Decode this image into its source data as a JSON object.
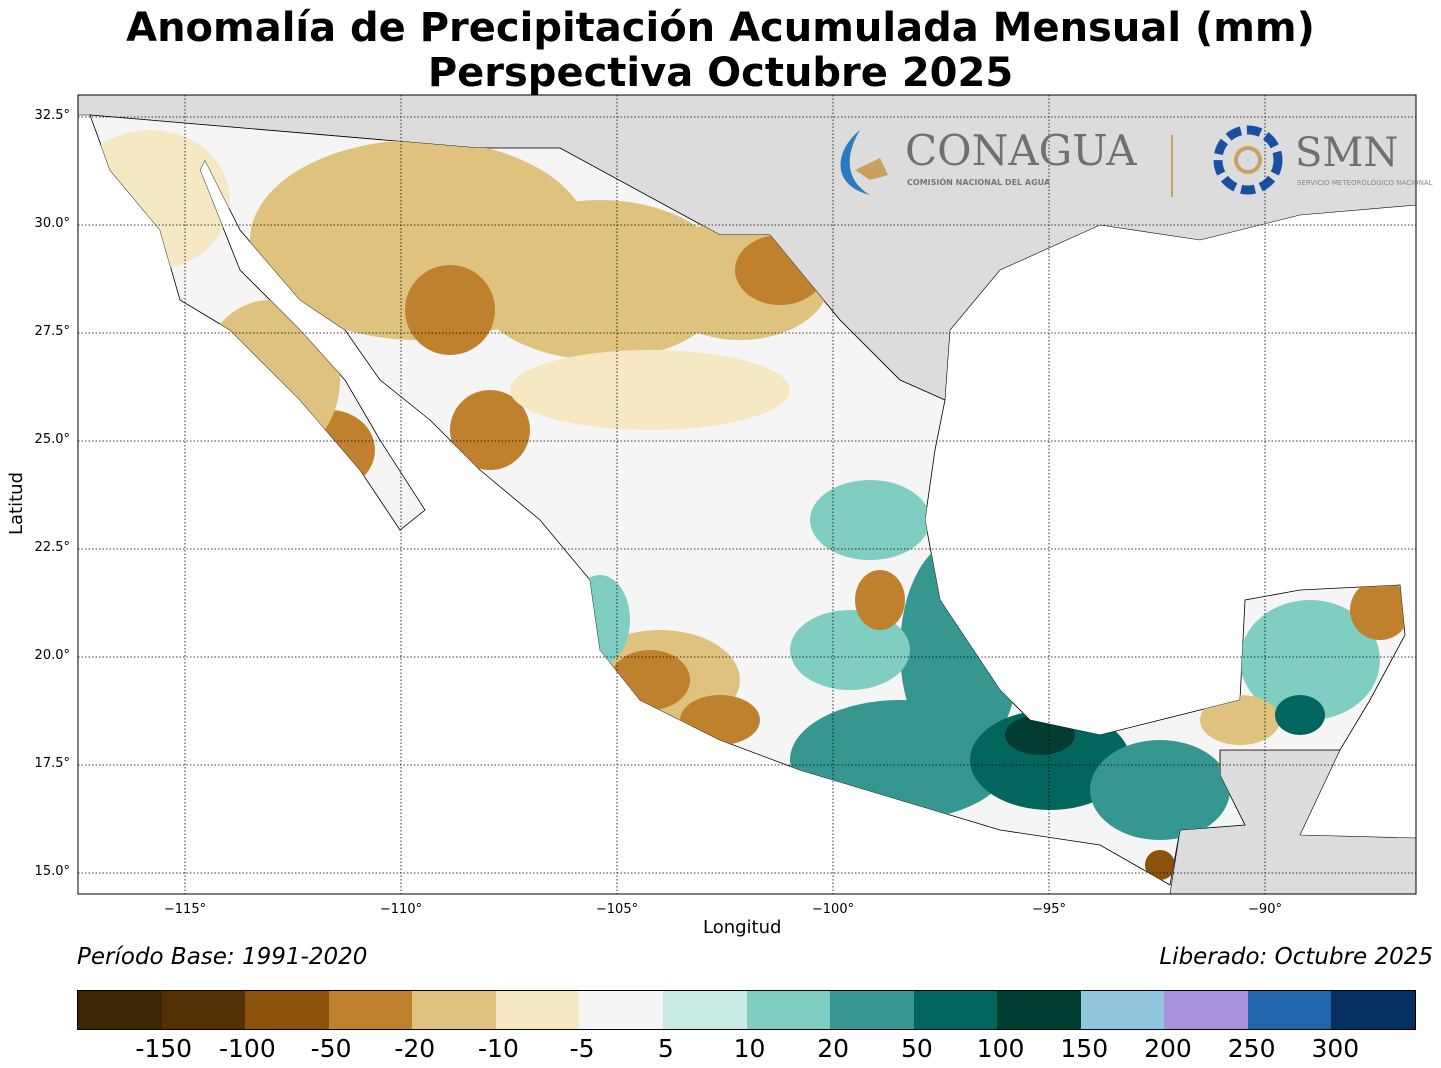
{
  "title": {
    "line1": "Anomalía de Precipitación Acumulada Mensual (mm)",
    "line2": "Perspectiva Octubre 2025"
  },
  "axes": {
    "xlabel": "Longitud",
    "ylabel": "Latitud",
    "lat_ticks": [
      "32.5°",
      "30.0°",
      "27.5°",
      "25.0°",
      "22.5°",
      "20.0°",
      "17.5°",
      "15.0°"
    ],
    "lon_ticks": [
      "−115°",
      "−110°",
      "−105°",
      "−100°",
      "−95°",
      "−90°"
    ]
  },
  "footer": {
    "base_period": "Período Base: 1991-2020",
    "released": "Liberado: Octubre 2025"
  },
  "logos": {
    "conagua": "CONAGUA",
    "conagua_sub": "COMISIÓN NACIONAL DEL AGUA",
    "smn": "SMN",
    "smn_sub": "SERVICIO METEOROLÓGICO NACIONAL"
  },
  "colorbar": {
    "colors": [
      "#3c2502",
      "#543005",
      "#8c510a",
      "#bf812d",
      "#dfc27d",
      "#f6e8c3",
      "#f5f5f5",
      "#c7eae5",
      "#80cdc1",
      "#35978f",
      "#01665e",
      "#003c30",
      "#92c5de",
      "#a993dc",
      "#2166ac",
      "#053061"
    ],
    "labels": [
      "-150",
      "-100",
      "-50",
      "-20",
      "-10",
      "-5",
      "5",
      "10",
      "20",
      "50",
      "100",
      "150",
      "200",
      "250",
      "300"
    ]
  }
}
